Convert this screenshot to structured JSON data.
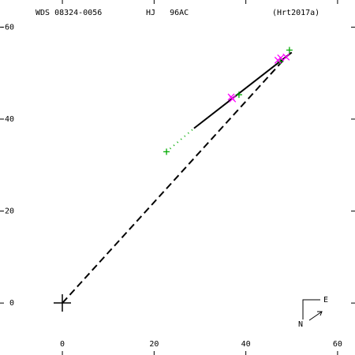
{
  "header": {
    "left": "WDS 08324-0056",
    "middle": "HJ   96AC",
    "right": "(Hrt2017a)"
  },
  "compass": {
    "east": "E",
    "north": "N"
  },
  "chart_data": {
    "type": "scatter",
    "xlim": [
      -13.6,
      63.8
    ],
    "ylim": [
      11.3,
      -65.9
    ],
    "xticks": [
      0,
      20,
      40,
      60
    ],
    "yticks": [
      -60,
      -40,
      -20,
      0
    ],
    "series": [
      {
        "marker": "line",
        "dash": "dotted",
        "color": "#00aa00",
        "x": [
          22.7,
          28.7
        ],
        "values": [
          -32.9,
          -38.0
        ]
      },
      {
        "marker": "line",
        "dash": "dashed",
        "color": "#000000",
        "x": [
          0,
          48.8
        ],
        "values": [
          0,
          -53.5
        ]
      },
      {
        "marker": "line",
        "dash": "solid",
        "color": "#000000",
        "x": [
          28.7,
          50.0
        ],
        "values": [
          -38.0,
          -54.5
        ]
      },
      {
        "marker": "plus",
        "color": "#00aa00",
        "x": [
          22.7,
          38.5,
          49.5,
          47.5
        ],
        "values": [
          -32.9,
          -45.3,
          -55.0,
          -52.5
        ]
      },
      {
        "marker": "x",
        "color": "#ff00ff",
        "x": [
          37.1,
          36.8,
          47.6,
          48.8,
          47.0
        ],
        "values": [
          -44.4,
          -44.8,
          -53.3,
          -53.5,
          -52.8
        ]
      }
    ]
  }
}
